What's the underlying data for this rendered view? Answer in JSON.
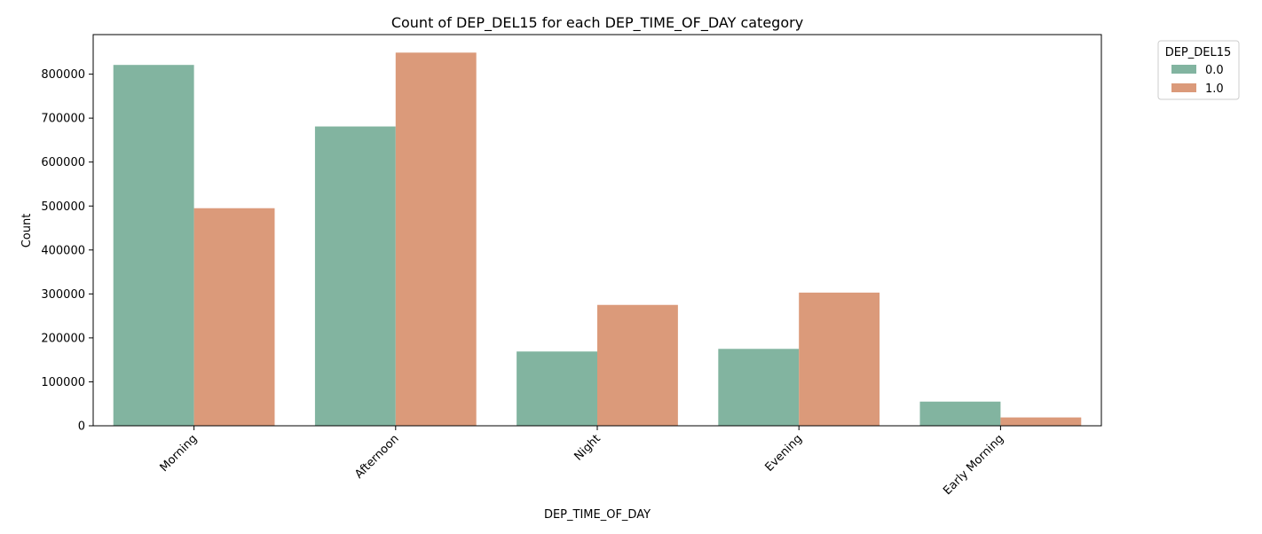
{
  "chart_data": {
    "type": "bar",
    "title": "Count of DEP_DEL15 for each DEP_TIME_OF_DAY category",
    "xlabel": "DEP_TIME_OF_DAY",
    "ylabel": "Count",
    "categories": [
      "Morning",
      "Afternoon",
      "Night",
      "Evening",
      "Early Morning"
    ],
    "series": [
      {
        "name": "0.0",
        "color": "#82b4a0",
        "values": [
          821000,
          681000,
          169000,
          175000,
          55000
        ]
      },
      {
        "name": "1.0",
        "color": "#db9a7a",
        "values": [
          495000,
          849000,
          275000,
          303000,
          19000
        ]
      }
    ],
    "ylim": [
      0,
      890000
    ],
    "yticks": [
      0,
      100000,
      200000,
      300000,
      400000,
      500000,
      600000,
      700000,
      800000
    ],
    "grid": false,
    "legend": {
      "title": "DEP_DEL15",
      "placement": "outside-top-right",
      "entries": [
        "0.0",
        "1.0"
      ]
    }
  }
}
